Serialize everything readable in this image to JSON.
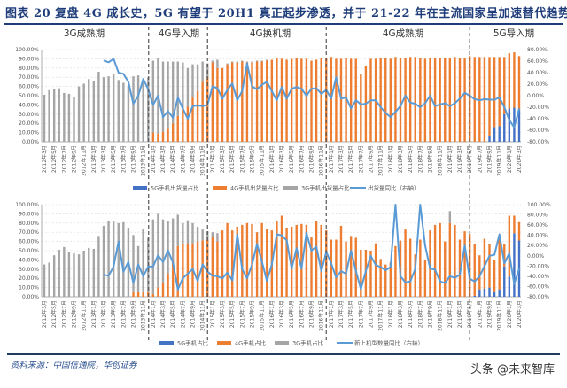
{
  "title": "图表 20   复盘 4G 成长史，5G 有望于 20H1 真正起步渗透，并于 21-22 年在主流国家呈加速替代趋势",
  "source": "资料来源：中国信通院，华创证券",
  "watermark": "头条 @未来智库",
  "periods": [
    "3G成熟期",
    "4G导入期",
    "4G换机期",
    "4G成熟期",
    "5G导入期"
  ],
  "colors": {
    "g5": "#4472c4",
    "g4": "#ed7d31",
    "g3": "#a5a5a5",
    "line": "#5b9bd5",
    "title": "#1f3d7a"
  },
  "chart_data": [
    {
      "type": "bar+line",
      "stacked": true,
      "grid": true,
      "legend": "bottom",
      "left_ticks": [
        "0.00%",
        "10.00%",
        "20.00%",
        "30.00%",
        "40.00%",
        "50.00%",
        "60.00%",
        "70.00%",
        "80.00%",
        "90.00%",
        "100.00%"
      ],
      "right_ticks": [
        "-80.00%",
        "-60.00%",
        "-40.00%",
        "-20.00%",
        "0.00%",
        "20.00%",
        "40.00%",
        "60.00%",
        "80.00%"
      ],
      "ylim_left": [
        0,
        100
      ],
      "ylim_right": [
        -80,
        80
      ],
      "categories": [
        "2012年3月",
        "2012年4月",
        "2012年5月",
        "2012年6月",
        "2012年7月",
        "2012年8月",
        "2012年9月",
        "2012年10月",
        "2012年11月",
        "2012年12月",
        "2013年1月",
        "2013年2月",
        "2013年3月",
        "2013年4月",
        "2013年5月",
        "2013年6月",
        "2013年7月",
        "2013年8月",
        "2013年9月",
        "2013年10月",
        "2013年11月",
        "2013年12月",
        "2014年1月",
        "2014年2月",
        "2014年3月",
        "2014年4月",
        "2014年5月",
        "2014年6月",
        "2014年7月",
        "2014年8月",
        "2014年9月",
        "2014年10月",
        "2014年11月",
        "2014年12月",
        "2015年1月",
        "2015年2月",
        "2015年3月",
        "2015年4月",
        "2015年5月",
        "2015年6月",
        "2015年7月",
        "2015年8月",
        "2015年9月",
        "2015年10月",
        "2015年11月",
        "2015年12月",
        "2016年1月",
        "2016年2月",
        "2016年3月",
        "2016年4月",
        "2016年5月",
        "2016年6月",
        "2016年7月",
        "2016年8月",
        "2016年9月",
        "2016年10月",
        "2016年11月",
        "2016年12月",
        "2017年1月",
        "2017年2月",
        "2017年3月",
        "2017年4月",
        "2017年5月",
        "2017年6月",
        "2017年7月",
        "2017年8月",
        "2017年9月",
        "2017年10月",
        "2017年11月",
        "2017年12月",
        "2018年1月",
        "2018年2月",
        "2018年3月",
        "2018年4月",
        "2018年5月",
        "2018年6月",
        "2018年7月",
        "2018年8月",
        "2018年9月",
        "2018年10月",
        "2018年11月",
        "2018年12月",
        "2019年1月",
        "2019年2月",
        "2019年3月",
        "2019年4月",
        "2019年5月",
        "2019年6月",
        "2019年7月",
        "2019年8月",
        "2019年9月",
        "2019年10月",
        "2019年11月",
        "2019年12月",
        "2020年1月",
        "2020年2月",
        "2020年3月"
      ],
      "series": [
        {
          "name": "5G手机出货量占比",
          "axis": "left",
          "kind": "bar",
          "values": [
            0,
            0,
            0,
            0,
            0,
            0,
            0,
            0,
            0,
            0,
            0,
            0,
            0,
            0,
            0,
            0,
            0,
            0,
            0,
            0,
            0,
            0,
            0,
            0,
            0,
            0,
            0,
            0,
            0,
            0,
            0,
            0,
            0,
            0,
            0,
            0,
            0,
            0,
            0,
            0,
            0,
            0,
            0,
            0,
            0,
            0,
            0,
            0,
            0,
            0,
            0,
            0,
            0,
            0,
            0,
            0,
            0,
            0,
            0,
            0,
            0,
            0,
            0,
            0,
            0,
            0,
            0,
            0,
            0,
            0,
            0,
            0,
            0,
            0,
            0,
            0,
            0,
            0,
            0,
            0,
            0,
            0,
            0,
            0,
            0,
            0,
            0,
            0,
            0,
            0,
            6,
            16,
            17,
            30,
            36,
            37,
            35
          ]
        },
        {
          "name": "4G手机出货量占比",
          "axis": "left",
          "kind": "bar",
          "values": [
            0,
            0,
            0,
            0,
            0,
            0,
            0,
            0,
            0,
            0,
            0,
            0,
            0,
            0,
            0,
            0,
            0,
            0,
            0,
            0,
            0,
            0,
            10,
            9,
            11,
            14,
            20,
            28,
            35,
            38,
            48,
            55,
            65,
            70,
            86,
            80,
            80,
            84,
            86,
            86,
            87,
            86,
            86,
            87,
            87,
            88,
            89,
            91,
            90,
            89,
            90,
            91,
            90,
            90,
            88,
            89,
            91,
            91,
            92,
            90,
            90,
            91,
            90,
            90,
            73,
            82,
            90,
            90,
            91,
            91,
            90,
            92,
            91,
            91,
            92,
            92,
            91,
            90,
            91,
            91,
            91,
            91,
            91,
            92,
            91,
            91,
            93,
            92,
            92,
            92,
            86,
            76,
            75,
            62,
            60,
            60,
            58
          ]
        },
        {
          "name": "3G手机出货量占比",
          "axis": "left",
          "kind": "bar",
          "values": [
            51,
            56,
            57,
            58,
            53,
            52,
            49,
            60,
            63,
            68,
            66,
            76,
            70,
            71,
            73,
            67,
            64,
            60,
            71,
            72,
            65,
            70,
            78,
            82,
            76,
            73,
            67,
            59,
            51,
            42,
            36,
            29,
            22,
            15,
            2,
            9,
            0,
            1,
            1,
            1,
            1,
            1,
            1,
            1,
            1,
            1,
            0,
            0,
            0,
            0,
            0,
            0,
            0,
            0,
            0,
            0,
            0,
            0,
            0,
            0,
            0,
            0,
            0,
            0,
            0,
            0,
            0,
            0,
            0,
            0,
            0,
            0,
            0,
            0,
            0,
            0,
            0,
            0,
            0,
            0,
            0,
            0,
            0,
            0,
            0,
            0,
            0,
            0,
            0,
            0,
            0,
            0,
            0,
            0,
            0,
            0,
            0
          ]
        },
        {
          "name": "出货量同比（右轴）",
          "axis": "right",
          "kind": "line",
          "values": [
            null,
            null,
            null,
            null,
            null,
            null,
            null,
            null,
            null,
            null,
            null,
            null,
            61,
            58,
            64,
            40,
            38,
            24,
            -14,
            0,
            29,
            11,
            -16,
            0,
            -37,
            -27,
            -38,
            -3,
            -22,
            -40,
            -18,
            -17,
            -18,
            -16,
            16,
            13,
            -5,
            10,
            21,
            -8,
            8,
            56,
            16,
            11,
            19,
            24,
            8,
            -8,
            15,
            -5,
            12,
            15,
            12,
            0,
            12,
            13,
            3,
            10,
            -5,
            32,
            -5,
            -3,
            -22,
            -8,
            -15,
            -14,
            -8,
            -8,
            -20,
            -30,
            -37,
            -28,
            -18,
            0,
            -12,
            -14,
            -20,
            -13,
            0,
            -18,
            -15,
            -13,
            -18,
            -13,
            -5,
            5,
            0,
            -6,
            -8,
            -6,
            -7,
            -7,
            -3,
            -20,
            -42,
            -55,
            -22
          ]
        }
      ]
    },
    {
      "type": "bar+line",
      "stacked": true,
      "grid": true,
      "legend": "bottom",
      "left_ticks": [
        "0.00%",
        "10.00%",
        "20.00%",
        "30.00%",
        "40.00%",
        "50.00%",
        "60.00%",
        "70.00%",
        "80.00%",
        "90.00%",
        "100.00%"
      ],
      "right_ticks": [
        "-80.00%",
        "-60.00%",
        "-40.00%",
        "-20.00%",
        "0.00%",
        "20.00%",
        "40.00%",
        "60.00%",
        "80.00%",
        "100.00%"
      ],
      "ylim_left": [
        0,
        100
      ],
      "ylim_right": [
        -80,
        100
      ],
      "series": [
        {
          "name": "5G手机占比",
          "axis": "left",
          "kind": "bar",
          "values": [
            0,
            0,
            0,
            0,
            0,
            0,
            0,
            0,
            0,
            0,
            0,
            0,
            0,
            0,
            0,
            0,
            0,
            0,
            0,
            0,
            0,
            0,
            0,
            0,
            0,
            0,
            0,
            0,
            0,
            0,
            0,
            0,
            0,
            0,
            0,
            0,
            0,
            0,
            0,
            0,
            0,
            0,
            0,
            0,
            0,
            0,
            0,
            0,
            0,
            0,
            0,
            0,
            0,
            0,
            0,
            0,
            0,
            0,
            0,
            0,
            0,
            0,
            0,
            0,
            0,
            0,
            0,
            0,
            0,
            0,
            0,
            0,
            0,
            0,
            0,
            0,
            0,
            0,
            0,
            0,
            0,
            0,
            0,
            0,
            0,
            0,
            0,
            1,
            8,
            9,
            10,
            5,
            8,
            33,
            22,
            69,
            61
          ]
        },
        {
          "name": "4G手机占比",
          "axis": "left",
          "kind": "bar",
          "values": [
            0,
            0,
            0,
            0,
            0,
            0,
            0,
            0,
            0,
            0,
            0,
            0,
            0,
            0,
            0,
            0,
            0,
            0,
            5,
            5,
            5,
            5,
            3,
            10,
            15,
            25,
            40,
            55,
            57,
            57,
            58,
            60,
            61,
            62,
            65,
            60,
            72,
            80,
            72,
            76,
            78,
            80,
            79,
            70,
            80,
            74,
            72,
            82,
            88,
            75,
            76,
            78,
            79,
            78,
            65,
            82,
            78,
            72,
            62,
            62,
            77,
            60,
            66,
            64,
            51,
            51,
            50,
            58,
            41,
            35,
            37,
            55,
            61,
            73,
            63,
            46,
            62,
            40,
            72,
            78,
            80,
            60,
            80,
            78,
            62,
            71,
            68,
            56,
            37,
            54,
            47,
            35,
            55,
            24,
            66,
            19,
            20
          ]
        },
        {
          "name": "3G手机占比",
          "axis": "left",
          "kind": "bar",
          "values": [
            35,
            37,
            45,
            51,
            54,
            49,
            47,
            46,
            50,
            53,
            52,
            66,
            77,
            82,
            82,
            80,
            81,
            75,
            62,
            50,
            69,
            59,
            81,
            80,
            69,
            57,
            45,
            34,
            23,
            26,
            22,
            16,
            12,
            9,
            5,
            9,
            0,
            0,
            0,
            0,
            0,
            0,
            0,
            0,
            0,
            0,
            0,
            0,
            0,
            0,
            0,
            0,
            0,
            0,
            0,
            0,
            0,
            0,
            0,
            0,
            0,
            0,
            0,
            0,
            0,
            0,
            0,
            0,
            0,
            0,
            0,
            0,
            0,
            0,
            0,
            0,
            0,
            0,
            0,
            0,
            0,
            0,
            13,
            0,
            0,
            0,
            0,
            0,
            0,
            0,
            0,
            0,
            0,
            0,
            0,
            0,
            0
          ]
        },
        {
          "name": "新上机型数量同比（右轴）",
          "axis": "right",
          "kind": "line",
          "values": [
            null,
            null,
            null,
            null,
            null,
            null,
            null,
            null,
            null,
            null,
            null,
            null,
            -37,
            -39,
            -21,
            28,
            -31,
            -12,
            -53,
            -17,
            -40,
            -21,
            -21,
            1,
            -12,
            10,
            -13,
            -66,
            -44,
            -35,
            -26,
            -49,
            -17,
            -31,
            -39,
            -40,
            -44,
            -33,
            -48,
            42,
            -26,
            -44,
            -17,
            23,
            -12,
            -49,
            -17,
            42,
            40,
            30,
            -25,
            15,
            -25,
            45,
            10,
            18,
            -30,
            8,
            -15,
            -42,
            -30,
            -35,
            10,
            -30,
            -65,
            -30,
            0,
            -18,
            -22,
            -28,
            -22,
            100,
            -40,
            -52,
            -50,
            -25,
            100,
            20,
            -25,
            -27,
            -50,
            -53,
            -40,
            -43,
            -37,
            20,
            -45,
            -50,
            -40,
            -20,
            0,
            2,
            42,
            -15,
            5,
            -55,
            -25
          ]
        }
      ]
    }
  ]
}
